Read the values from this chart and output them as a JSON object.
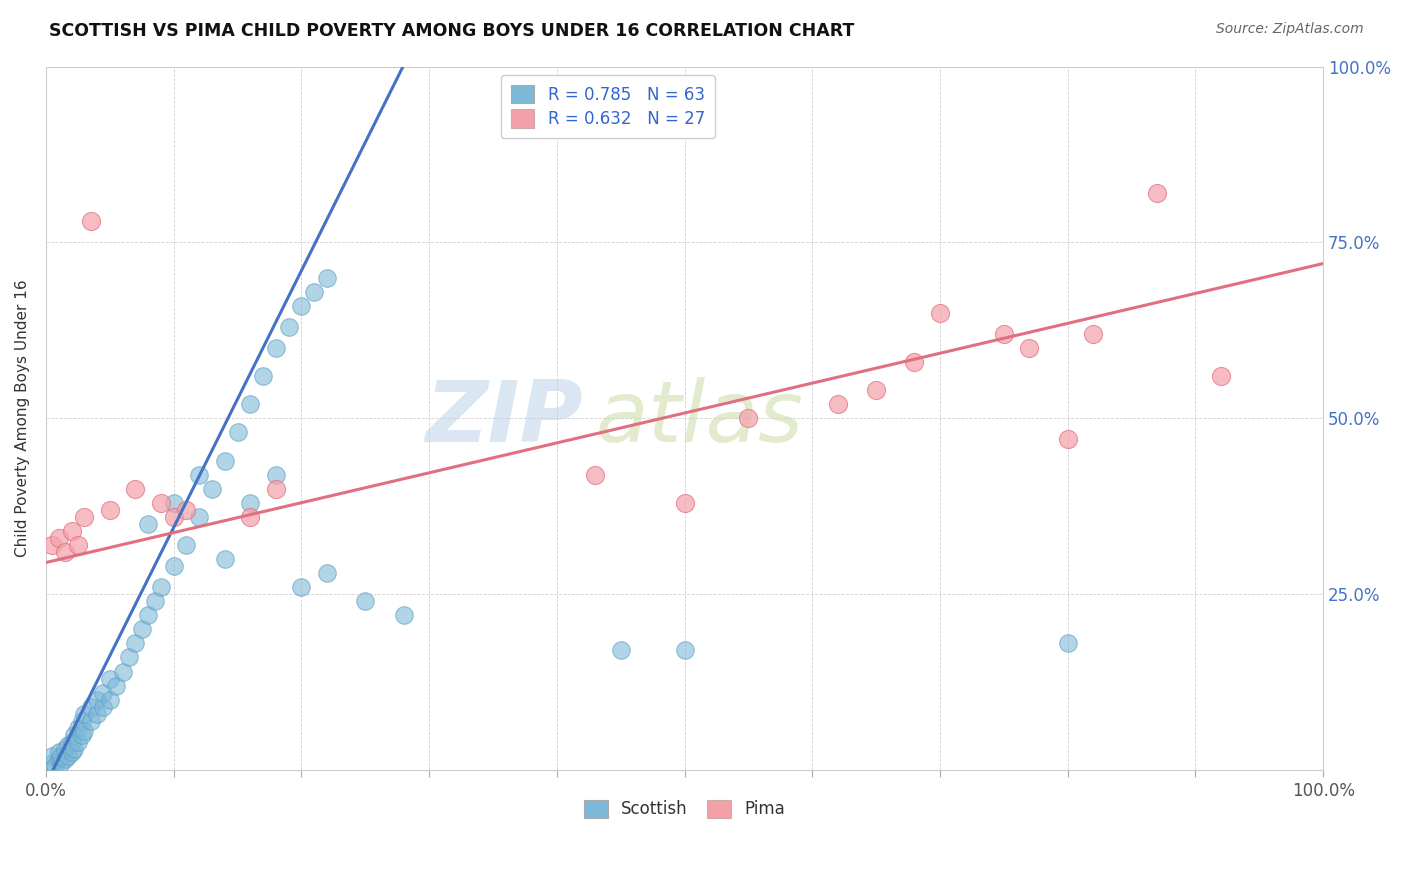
{
  "title": "SCOTTISH VS PIMA CHILD POVERTY AMONG BOYS UNDER 16 CORRELATION CHART",
  "source": "Source: ZipAtlas.com",
  "ylabel": "Child Poverty Among Boys Under 16",
  "xlim": [
    0,
    1
  ],
  "ylim": [
    0,
    1
  ],
  "xticks": [
    0.0,
    0.1,
    0.2,
    0.3,
    0.4,
    0.5,
    0.6,
    0.7,
    0.8,
    0.9,
    1.0
  ],
  "yticks": [
    0.0,
    0.25,
    0.5,
    0.75,
    1.0
  ],
  "legend_r1": "R = 0.785",
  "legend_n1": "N = 63",
  "legend_r2": "R = 0.632",
  "legend_n2": "N = 27",
  "scottish_color": "#7db8d8",
  "scottish_edge_color": "#5a9ec0",
  "pima_color": "#f4a0a8",
  "pima_edge_color": "#e07080",
  "scottish_line_color": "#4472c4",
  "pima_line_color": "#e07080",
  "background_color": "#ffffff",
  "watermark_zip": "ZIP",
  "watermark_atlas": "atlas",
  "watermark_color_zip": "#b8cfe8",
  "watermark_color_atlas": "#c8d8a0",
  "scottish_points": [
    [
      0.005,
      0.01
    ],
    [
      0.005,
      0.02
    ],
    [
      0.007,
      0.005
    ],
    [
      0.01,
      0.015
    ],
    [
      0.01,
      0.025
    ],
    [
      0.012,
      0.01
    ],
    [
      0.012,
      0.02
    ],
    [
      0.015,
      0.015
    ],
    [
      0.015,
      0.03
    ],
    [
      0.017,
      0.02
    ],
    [
      0.017,
      0.035
    ],
    [
      0.02,
      0.025
    ],
    [
      0.02,
      0.04
    ],
    [
      0.022,
      0.03
    ],
    [
      0.022,
      0.05
    ],
    [
      0.025,
      0.04
    ],
    [
      0.025,
      0.06
    ],
    [
      0.028,
      0.05
    ],
    [
      0.028,
      0.07
    ],
    [
      0.03,
      0.055
    ],
    [
      0.03,
      0.08
    ],
    [
      0.035,
      0.07
    ],
    [
      0.035,
      0.09
    ],
    [
      0.04,
      0.08
    ],
    [
      0.04,
      0.1
    ],
    [
      0.045,
      0.09
    ],
    [
      0.045,
      0.11
    ],
    [
      0.05,
      0.1
    ],
    [
      0.05,
      0.13
    ],
    [
      0.055,
      0.12
    ],
    [
      0.06,
      0.14
    ],
    [
      0.065,
      0.16
    ],
    [
      0.07,
      0.18
    ],
    [
      0.075,
      0.2
    ],
    [
      0.08,
      0.22
    ],
    [
      0.085,
      0.24
    ],
    [
      0.09,
      0.26
    ],
    [
      0.1,
      0.29
    ],
    [
      0.11,
      0.32
    ],
    [
      0.12,
      0.36
    ],
    [
      0.13,
      0.4
    ],
    [
      0.14,
      0.44
    ],
    [
      0.15,
      0.48
    ],
    [
      0.16,
      0.52
    ],
    [
      0.17,
      0.56
    ],
    [
      0.18,
      0.6
    ],
    [
      0.19,
      0.63
    ],
    [
      0.2,
      0.66
    ],
    [
      0.21,
      0.68
    ],
    [
      0.22,
      0.7
    ],
    [
      0.08,
      0.35
    ],
    [
      0.1,
      0.38
    ],
    [
      0.12,
      0.42
    ],
    [
      0.14,
      0.3
    ],
    [
      0.16,
      0.38
    ],
    [
      0.18,
      0.42
    ],
    [
      0.2,
      0.26
    ],
    [
      0.22,
      0.28
    ],
    [
      0.25,
      0.24
    ],
    [
      0.28,
      0.22
    ],
    [
      0.45,
      0.17
    ],
    [
      0.5,
      0.17
    ],
    [
      0.8,
      0.18
    ]
  ],
  "pima_points": [
    [
      0.005,
      0.32
    ],
    [
      0.01,
      0.33
    ],
    [
      0.015,
      0.31
    ],
    [
      0.02,
      0.34
    ],
    [
      0.025,
      0.32
    ],
    [
      0.03,
      0.36
    ],
    [
      0.035,
      0.78
    ],
    [
      0.05,
      0.37
    ],
    [
      0.07,
      0.4
    ],
    [
      0.09,
      0.38
    ],
    [
      0.1,
      0.36
    ],
    [
      0.11,
      0.37
    ],
    [
      0.16,
      0.36
    ],
    [
      0.18,
      0.4
    ],
    [
      0.43,
      0.42
    ],
    [
      0.5,
      0.38
    ],
    [
      0.55,
      0.5
    ],
    [
      0.62,
      0.52
    ],
    [
      0.65,
      0.54
    ],
    [
      0.68,
      0.58
    ],
    [
      0.7,
      0.65
    ],
    [
      0.75,
      0.62
    ],
    [
      0.77,
      0.6
    ],
    [
      0.8,
      0.47
    ],
    [
      0.82,
      0.62
    ],
    [
      0.87,
      0.82
    ],
    [
      0.92,
      0.56
    ]
  ],
  "scottish_trend_x": [
    0.0,
    0.285
  ],
  "scottish_trend_y": [
    -0.02,
    1.02
  ],
  "pima_trend_x": [
    0.0,
    1.0
  ],
  "pima_trend_y": [
    0.295,
    0.72
  ]
}
